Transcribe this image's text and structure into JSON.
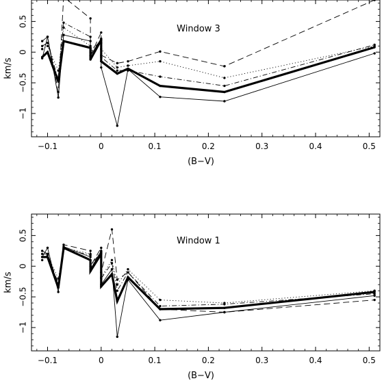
{
  "chart_data": [
    {
      "type": "line",
      "annotation": "Window 3",
      "xlabel": "(B−V)",
      "ylabel": "km/s",
      "xlim": [
        -0.13,
        0.52
      ],
      "ylim": [
        -1.38,
        0.85
      ],
      "xticks": [
        -0.1,
        0,
        0.1,
        0.2,
        0.3,
        0.4,
        0.5
      ],
      "xticklabels": [
        "−0.1",
        "0",
        "0.1",
        "0.2",
        "0.3",
        "0.4",
        "0.5"
      ],
      "yticks": [
        0.5,
        0,
        -0.5,
        -1
      ],
      "yticklabels": [
        "0.5",
        "0",
        "−0.5",
        "−1"
      ],
      "x": [
        -0.11,
        -0.1,
        -0.08,
        -0.07,
        -0.02,
        -0.02,
        0.0,
        0.0,
        0.03,
        0.05,
        0.11,
        0.23,
        0.51
      ],
      "series": [
        {
          "style": "thick",
          "values": [
            -0.08,
            0.0,
            -0.48,
            0.18,
            0.07,
            -0.12,
            0.2,
            -0.15,
            -0.35,
            -0.27,
            -0.55,
            -0.65,
            0.08
          ]
        },
        {
          "style": "thin",
          "values": [
            -0.1,
            0.25,
            -0.74,
            0.28,
            0.18,
            -0.06,
            0.22,
            -0.25,
            -1.2,
            -0.28,
            -0.73,
            -0.8,
            -0.02
          ]
        },
        {
          "style": "dashed",
          "values": [
            0.18,
            0.25,
            -0.65,
            0.9,
            0.55,
            -0.06,
            0.32,
            -0.05,
            -0.18,
            -0.15,
            0.01,
            -0.23,
            0.85
          ]
        },
        {
          "style": "dotted",
          "values": [
            0.05,
            0.1,
            -0.3,
            0.4,
            0.1,
            0.05,
            0.15,
            0.05,
            -0.25,
            -0.22,
            -0.15,
            -0.42,
            0.1
          ]
        },
        {
          "style": "dash-dot",
          "values": [
            0.1,
            0.15,
            -0.45,
            0.48,
            0.25,
            0.0,
            0.2,
            -0.08,
            -0.3,
            -0.3,
            -0.4,
            -0.55,
            0.12
          ]
        }
      ]
    },
    {
      "type": "line",
      "annotation": "Window 1",
      "xlabel": "(B−V)",
      "ylabel": "km/s",
      "xlim": [
        -0.13,
        0.52
      ],
      "ylim": [
        -1.38,
        0.85
      ],
      "xticks": [
        -0.1,
        0,
        0.1,
        0.2,
        0.3,
        0.4,
        0.5
      ],
      "xticklabels": [
        "−0.1",
        "0",
        "0.1",
        "0.2",
        "0.3",
        "0.4",
        "0.5"
      ],
      "yticks": [
        0.5,
        0,
        -0.5,
        -1
      ],
      "yticklabels": [
        "0.5",
        "0",
        "−0.5",
        "−1"
      ],
      "x": [
        -0.11,
        -0.1,
        -0.08,
        -0.07,
        -0.02,
        -0.02,
        0.0,
        0.0,
        0.02,
        0.03,
        0.05,
        0.11,
        0.23,
        0.51
      ],
      "series": [
        {
          "style": "thick",
          "values": [
            0.15,
            0.15,
            -0.35,
            0.3,
            0.1,
            -0.08,
            0.2,
            -0.33,
            -0.13,
            -0.57,
            -0.18,
            -0.7,
            -0.68,
            -0.42
          ]
        },
        {
          "style": "thin",
          "values": [
            0.15,
            0.3,
            -0.42,
            0.32,
            0.15,
            -0.05,
            0.25,
            -0.3,
            -0.05,
            -1.15,
            -0.22,
            -0.88,
            -0.75,
            -0.48
          ]
        },
        {
          "style": "dashed",
          "values": [
            0.25,
            0.2,
            -0.3,
            0.35,
            0.25,
            0.0,
            0.3,
            -0.1,
            0.6,
            -0.22,
            -0.1,
            -0.7,
            -0.75,
            -0.55
          ]
        },
        {
          "style": "dotted",
          "values": [
            0.1,
            0.18,
            -0.2,
            0.3,
            0.2,
            0.02,
            0.22,
            -0.18,
            0.1,
            -0.3,
            -0.05,
            -0.55,
            -0.6,
            -0.4
          ]
        },
        {
          "style": "dash-dot",
          "values": [
            0.2,
            0.2,
            -0.28,
            0.28,
            0.18,
            0.0,
            0.24,
            -0.2,
            0.05,
            -0.4,
            -0.1,
            -0.65,
            -0.62,
            -0.45
          ]
        }
      ]
    }
  ]
}
